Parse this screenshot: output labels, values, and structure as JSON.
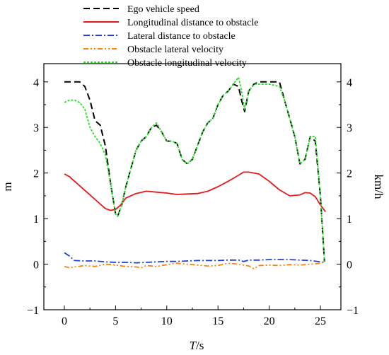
{
  "chart_data": {
    "type": "line",
    "xlabel": "T/s",
    "xlabel_var": "T",
    "xlabel_unit": "/s",
    "ylabel_left": "m",
    "ylabel_right": "km/h",
    "xlim": [
      -2,
      27
    ],
    "ylim": [
      -1,
      4.4
    ],
    "x_ticks": [
      0,
      5,
      10,
      15,
      20,
      25
    ],
    "y_ticks": [
      -1,
      0,
      1,
      2,
      3,
      4
    ],
    "grid": false,
    "legend_position": "top",
    "series": [
      {
        "name": "Ego vehicle speed",
        "color": "#000000",
        "dash": "dashed",
        "x": [
          0,
          1.5,
          2,
          2.5,
          3,
          3.5,
          4,
          4.5,
          5,
          5.2,
          5.6,
          6,
          6.5,
          7,
          7.5,
          8,
          8.5,
          9,
          9.5,
          10,
          10.5,
          11,
          11.5,
          12,
          12.5,
          13,
          13.5,
          14,
          14.5,
          15,
          15.5,
          16,
          16.5,
          17,
          17.3,
          17.6,
          18,
          18.5,
          19,
          19.5,
          20,
          21,
          21.5,
          22,
          22.5,
          23,
          23.5,
          24,
          24.5,
          25,
          25.4
        ],
        "y": [
          4.0,
          4.0,
          3.9,
          3.6,
          3.15,
          3.05,
          2.6,
          1.8,
          1.1,
          1.05,
          1.3,
          1.7,
          2.1,
          2.5,
          2.7,
          2.8,
          3.0,
          3.05,
          2.9,
          2.7,
          2.7,
          2.65,
          2.3,
          2.2,
          2.3,
          2.6,
          2.9,
          3.1,
          3.2,
          3.5,
          3.7,
          3.8,
          3.95,
          3.9,
          3.6,
          3.35,
          3.8,
          3.95,
          4.0,
          4.0,
          4.0,
          4.0,
          3.6,
          3.2,
          2.8,
          2.2,
          2.3,
          2.8,
          2.7,
          1.5,
          0.05
        ]
      },
      {
        "name": "Longitudinal distance to obstacle",
        "color": "#e31a1c",
        "dash": "solid",
        "x": [
          0,
          0.5,
          1,
          1.5,
          2,
          2.5,
          3,
          3.5,
          4,
          4.5,
          5,
          5.5,
          6,
          7,
          8,
          9,
          10,
          11,
          12,
          13,
          14,
          15,
          16,
          17,
          17.5,
          18,
          19,
          20,
          21,
          22,
          23,
          23.5,
          24,
          24.5,
          25,
          25.5
        ],
        "y": [
          1.98,
          1.92,
          1.82,
          1.72,
          1.62,
          1.52,
          1.42,
          1.32,
          1.22,
          1.18,
          1.2,
          1.3,
          1.45,
          1.55,
          1.6,
          1.58,
          1.56,
          1.53,
          1.54,
          1.55,
          1.6,
          1.7,
          1.82,
          1.95,
          2.02,
          2.02,
          1.98,
          1.82,
          1.63,
          1.5,
          1.52,
          1.57,
          1.56,
          1.48,
          1.3,
          1.15
        ]
      },
      {
        "name": "Lateral distance to obstacle",
        "color": "#1f3fdb",
        "dash": "dashdot",
        "x": [
          0,
          0.5,
          1,
          2,
          3,
          4,
          5,
          6,
          7,
          8,
          9,
          10,
          11,
          12,
          13,
          14,
          15,
          16,
          17,
          17.5,
          18,
          19,
          20,
          21,
          22,
          23,
          24,
          25,
          25.5
        ],
        "y": [
          0.25,
          0.18,
          0.08,
          0.07,
          0.07,
          0.05,
          0.04,
          0.04,
          0.03,
          0.04,
          0.05,
          0.06,
          0.06,
          0.07,
          0.08,
          0.08,
          0.08,
          0.09,
          0.09,
          0.06,
          0.09,
          0.09,
          0.1,
          0.1,
          0.1,
          0.09,
          0.08,
          0.05,
          0.04
        ]
      },
      {
        "name": "Obstacle lateral velocity",
        "color": "#ff7f0e",
        "dash": "dashdotdot",
        "x": [
          0,
          0.5,
          1,
          2,
          3,
          4,
          5,
          6,
          7,
          7.5,
          8,
          9,
          10,
          11,
          12,
          13,
          14,
          15,
          16,
          17,
          18,
          18.5,
          19,
          20,
          21,
          22,
          23,
          24,
          25,
          25.5
        ],
        "y": [
          -0.05,
          -0.08,
          -0.06,
          -0.03,
          -0.05,
          0.0,
          -0.02,
          -0.05,
          -0.06,
          -0.08,
          -0.03,
          -0.05,
          -0.01,
          0.02,
          0.0,
          -0.02,
          -0.04,
          -0.03,
          0.02,
          0.0,
          -0.04,
          -0.1,
          -0.03,
          -0.02,
          -0.03,
          -0.01,
          -0.02,
          0.0,
          0.02,
          0.05
        ]
      },
      {
        "name": "Obstacle longitudinal velocity",
        "color": "#22dd22",
        "dash": "dotted",
        "x": [
          0,
          0.5,
          1,
          1.5,
          2,
          2.5,
          3,
          3.5,
          4,
          4.5,
          5,
          5.2,
          5.6,
          6,
          6.5,
          7,
          7.5,
          8,
          8.5,
          9,
          9.5,
          10,
          10.5,
          11,
          11.5,
          12,
          12.5,
          13,
          13.5,
          14,
          14.5,
          15,
          15.5,
          16,
          16.5,
          17,
          17.3,
          17.6,
          18,
          18.5,
          19,
          19.5,
          20,
          21,
          21.5,
          22,
          22.5,
          23,
          23.5,
          24,
          24.5,
          25,
          25.4
        ],
        "y": [
          3.55,
          3.6,
          3.6,
          3.55,
          3.4,
          3.0,
          2.8,
          2.65,
          2.4,
          1.8,
          1.1,
          1.05,
          1.3,
          1.7,
          2.1,
          2.5,
          2.7,
          2.8,
          3.0,
          3.1,
          2.9,
          2.7,
          2.7,
          2.65,
          2.3,
          2.2,
          2.3,
          2.6,
          2.9,
          3.1,
          3.2,
          3.5,
          3.7,
          3.8,
          3.95,
          4.1,
          3.8,
          3.4,
          3.8,
          3.95,
          3.95,
          3.95,
          3.95,
          3.9,
          3.6,
          3.2,
          2.8,
          2.2,
          2.3,
          2.8,
          2.8,
          1.5,
          0.05
        ]
      }
    ]
  }
}
